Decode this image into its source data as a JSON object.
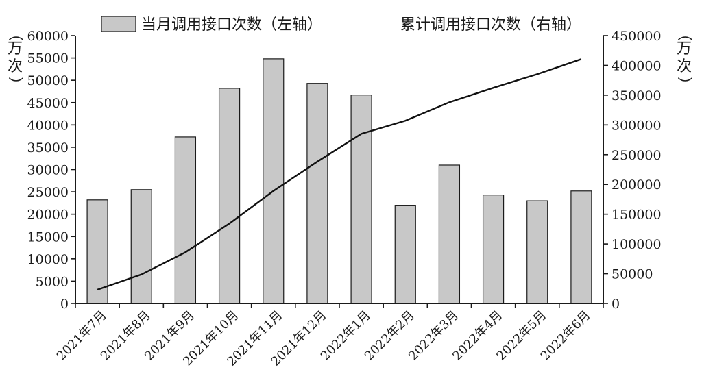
{
  "chart_data": {
    "type": "bar",
    "categories": [
      "2021年7月",
      "2021年8月",
      "2021年9月",
      "2021年10月",
      "2021年11月",
      "2021年12月",
      "2022年1月",
      "2022年2月",
      "2022年3月",
      "2022年4月",
      "2022年5月",
      "2022年6月"
    ],
    "series": [
      {
        "name": "当月调用接口次数（左轴）",
        "type": "bar",
        "axis": "left",
        "values": [
          23200,
          25500,
          37300,
          48200,
          54800,
          49300,
          46700,
          22000,
          31000,
          24300,
          23000,
          25200
        ]
      },
      {
        "name": "累计调用接口次数（右轴）",
        "type": "line",
        "axis": "right",
        "values": [
          23200,
          48700,
          86000,
          134200,
          189000,
          238300,
          285000,
          307000,
          338000,
          362300,
          385300,
          410500
        ]
      }
    ],
    "y_left": {
      "unit": "（万次）",
      "ylim": [
        0,
        60000
      ],
      "ticks": [
        "0",
        "5000",
        "10000",
        "15000",
        "20000",
        "25000",
        "30000",
        "35000",
        "40000",
        "45000",
        "50000",
        "55000",
        "60000"
      ]
    },
    "y_right": {
      "unit": "（万次）",
      "ylim": [
        0,
        450000
      ],
      "ticks": [
        "0",
        "50000",
        "100000",
        "150000",
        "200000",
        "250000",
        "300000",
        "350000",
        "400000",
        "450000"
      ]
    },
    "colors": {
      "bar_fill": "#c8c8c8",
      "bar_stroke": "#1a1a1a",
      "line": "#111111"
    },
    "legend": "top",
    "grid": false
  }
}
